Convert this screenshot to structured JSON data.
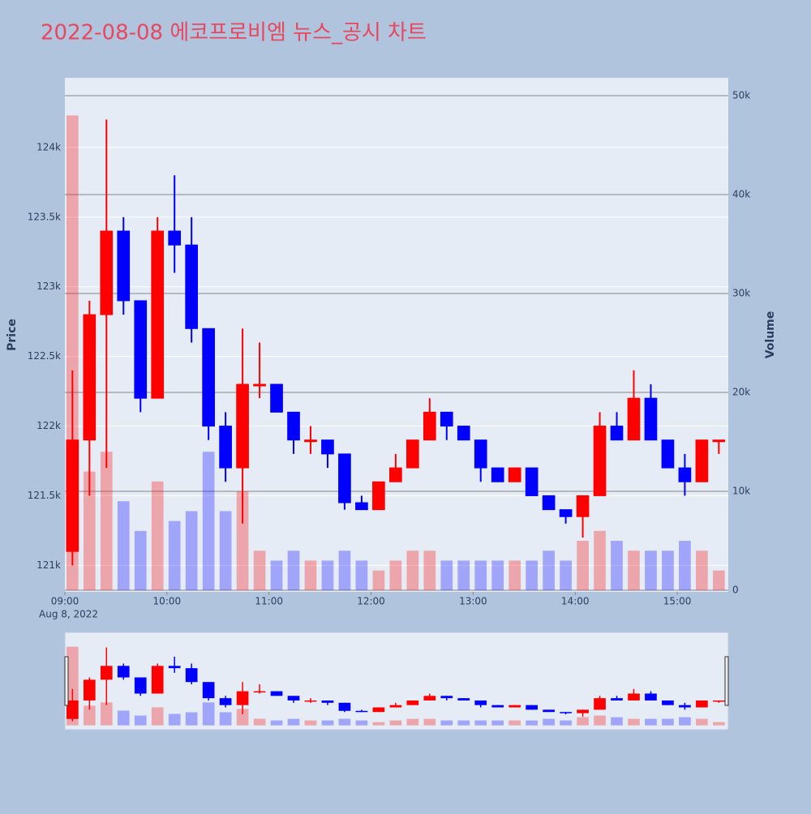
{
  "chart_data": {
    "type": "candlestick",
    "title": "2022-08-08 에코프로비엠 뉴스_공시 차트",
    "x": [
      "09:00",
      "09:10",
      "09:20",
      "09:30",
      "09:40",
      "09:50",
      "10:00",
      "10:10",
      "10:20",
      "10:30",
      "10:40",
      "10:50",
      "11:00",
      "11:10",
      "11:20",
      "11:30",
      "11:40",
      "11:50",
      "12:00",
      "12:10",
      "12:20",
      "12:30",
      "12:40",
      "12:50",
      "13:00",
      "13:10",
      "13:20",
      "13:30",
      "13:40",
      "13:50",
      "14:00",
      "14:10",
      "14:20",
      "14:30",
      "14:40",
      "14:50",
      "15:00",
      "15:10",
      "15:20"
    ],
    "open": [
      121100,
      121900,
      122800,
      123400,
      122900,
      122200,
      123400,
      123300,
      122700,
      122000,
      121700,
      122300,
      122300,
      122100,
      121900,
      121900,
      121800,
      121450,
      121400,
      121600,
      121700,
      121900,
      122100,
      122000,
      121900,
      121700,
      121600,
      121700,
      121500,
      121400,
      121350,
      121500,
      122000,
      121900,
      122200,
      121900,
      121700,
      121600,
      121900
    ],
    "high": [
      122400,
      122900,
      124200,
      123500,
      122900,
      123500,
      123800,
      123500,
      122700,
      122100,
      122700,
      122600,
      122300,
      122100,
      122000,
      121900,
      121800,
      121500,
      121600,
      121800,
      121900,
      122200,
      122100,
      122000,
      121900,
      121700,
      121700,
      121700,
      121500,
      121400,
      121500,
      122100,
      122100,
      122400,
      122300,
      121900,
      121800,
      121900,
      121900
    ],
    "low": [
      121000,
      121500,
      121700,
      122800,
      122100,
      122200,
      123100,
      122600,
      121900,
      121600,
      121300,
      122200,
      122100,
      121800,
      121800,
      121700,
      121400,
      121400,
      121400,
      121600,
      121700,
      121900,
      121900,
      121900,
      121600,
      121600,
      121600,
      121500,
      121400,
      121300,
      121200,
      121500,
      121900,
      121900,
      121900,
      121700,
      121500,
      121600,
      121800
    ],
    "close": [
      121900,
      122800,
      123400,
      122900,
      122200,
      123400,
      123300,
      122700,
      122000,
      121700,
      122300,
      122300,
      122100,
      121900,
      121900,
      121800,
      121450,
      121400,
      121600,
      121700,
      121900,
      122100,
      122000,
      121900,
      121700,
      121600,
      121700,
      121500,
      121400,
      121350,
      121500,
      122000,
      121900,
      122200,
      121900,
      121700,
      121600,
      121900,
      121900
    ],
    "volume": [
      48000,
      12000,
      14000,
      9000,
      6000,
      11000,
      7000,
      8000,
      14000,
      8000,
      10000,
      4000,
      3000,
      4000,
      3000,
      3000,
      4000,
      3000,
      2000,
      3000,
      4000,
      4000,
      3000,
      3000,
      3000,
      3000,
      3000,
      3000,
      4000,
      3000,
      5000,
      6000,
      5000,
      4000,
      4000,
      4000,
      5000,
      4000,
      2000
    ],
    "increasing_color": "#ff0000",
    "decreasing_color": "#0000ff",
    "xlim": [
      "09:00",
      "15:30"
    ],
    "xticks": [
      "09:00",
      "10:00",
      "11:00",
      "12:00",
      "13:00",
      "14:00",
      "15:00"
    ],
    "x_date_label": "Aug 8, 2022",
    "ylim": [
      120810,
      124500
    ],
    "yticks": [
      {
        "value": 121000,
        "label": "121k"
      },
      {
        "value": 121500,
        "label": "121.5k"
      },
      {
        "value": 122000,
        "label": "122k"
      },
      {
        "value": 122500,
        "label": "122.5k"
      },
      {
        "value": 123000,
        "label": "123k"
      },
      {
        "value": 123500,
        "label": "123.5k"
      },
      {
        "value": 124000,
        "label": "124k"
      }
    ],
    "y2lim": [
      -160,
      51800
    ],
    "y2ticks": [
      0,
      {
        "value": 10000,
        "label": "10k"
      },
      {
        "value": 20000,
        "label": "20k"
      },
      {
        "value": 30000,
        "label": "30k"
      },
      {
        "value": 40000,
        "label": "40k"
      },
      {
        "value": 50000,
        "label": "50k"
      }
    ],
    "ylabel": "Price",
    "y2label": "Volume"
  }
}
